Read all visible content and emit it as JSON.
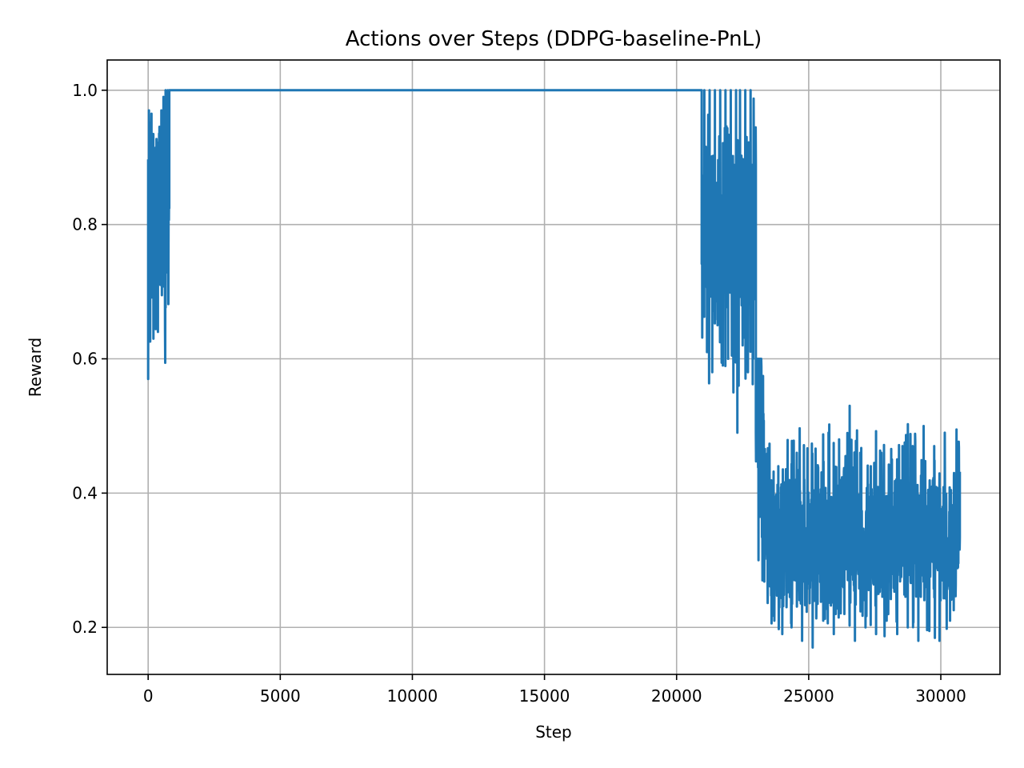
{
  "chart_data": {
    "type": "line",
    "title": "Actions over Steps (DDPG-baseline-PnL)",
    "xlabel": "Step",
    "ylabel": "Reward",
    "xlim": [
      -1550,
      32240
    ],
    "ylim": [
      0.13,
      1.045
    ],
    "xticks": [
      0,
      5000,
      10000,
      15000,
      20000,
      25000,
      30000
    ],
    "xtick_labels": [
      "0",
      "5000",
      "10000",
      "15000",
      "20000",
      "25000",
      "30000"
    ],
    "yticks": [
      0.2,
      0.4,
      0.6,
      0.8,
      1.0
    ],
    "ytick_labels": [
      "0.2",
      "0.4",
      "0.6",
      "0.8",
      "1.0"
    ],
    "grid": true,
    "legend": "none",
    "series_color": "#1f77b4",
    "series": [
      {
        "segments": [
          {
            "x_start": 0,
            "x_end": 800,
            "pattern": "noise",
            "min": 0.57,
            "max": 1.0,
            "mean": 0.83
          },
          {
            "x_start": 800,
            "x_end": 20950,
            "pattern": "constant",
            "value": 1.0
          },
          {
            "x_start": 20950,
            "x_end": 23000,
            "pattern": "noise",
            "min": 0.49,
            "max": 1.0,
            "mean": 0.82
          },
          {
            "x_start": 23000,
            "x_end": 23300,
            "pattern": "transition",
            "min": 0.3,
            "max": 0.6,
            "mean": 0.42
          },
          {
            "x_start": 23300,
            "x_end": 30720,
            "pattern": "noise",
            "min": 0.17,
            "max": 0.53,
            "mean": 0.33
          }
        ],
        "points": [
          [
            0,
            0.57
          ],
          [
            30,
            0.97
          ],
          [
            60,
            0.72
          ],
          [
            90,
            0.93
          ],
          [
            130,
            0.71
          ],
          [
            160,
            0.88
          ],
          [
            200,
            0.63
          ],
          [
            240,
            0.86
          ],
          [
            280,
            0.66
          ],
          [
            330,
            0.89
          ],
          [
            370,
            0.64
          ],
          [
            410,
            0.81
          ],
          [
            460,
            0.71
          ],
          [
            500,
            0.97
          ],
          [
            540,
            0.75
          ],
          [
            580,
            0.99
          ],
          [
            620,
            0.86
          ],
          [
            660,
            1.0
          ],
          [
            700,
            0.93
          ],
          [
            740,
            1.0
          ],
          [
            800,
            1.0
          ],
          [
            20950,
            1.0
          ],
          [
            21000,
            0.8
          ],
          [
            21050,
            1.0
          ],
          [
            21150,
            0.61
          ],
          [
            21250,
            1.0
          ],
          [
            21350,
            0.58
          ],
          [
            21450,
            1.0
          ],
          [
            21550,
            0.65
          ],
          [
            21650,
            1.0
          ],
          [
            21750,
            0.59
          ],
          [
            21850,
            1.0
          ],
          [
            21950,
            0.6
          ],
          [
            22050,
            1.0
          ],
          [
            22150,
            0.55
          ],
          [
            22250,
            1.0
          ],
          [
            22300,
            0.49
          ],
          [
            22400,
            1.0
          ],
          [
            22500,
            0.62
          ],
          [
            22600,
            1.0
          ],
          [
            22700,
            0.58
          ],
          [
            22800,
            1.0
          ],
          [
            22900,
            0.6
          ],
          [
            23000,
            0.49
          ],
          [
            23050,
            0.54
          ],
          [
            23100,
            0.3
          ],
          [
            23150,
            0.52
          ],
          [
            23250,
            0.27
          ],
          [
            23350,
            0.45
          ],
          [
            23450,
            0.25
          ],
          [
            23550,
            0.41
          ],
          [
            23700,
            0.21
          ],
          [
            23850,
            0.44
          ],
          [
            24000,
            0.19
          ],
          [
            24150,
            0.43
          ],
          [
            24350,
            0.2
          ],
          [
            24550,
            0.46
          ],
          [
            24750,
            0.18
          ],
          [
            24950,
            0.42
          ],
          [
            25150,
            0.17
          ],
          [
            25350,
            0.44
          ],
          [
            25550,
            0.21
          ],
          [
            25750,
            0.49
          ],
          [
            25950,
            0.19
          ],
          [
            26150,
            0.48
          ],
          [
            26350,
            0.22
          ],
          [
            26550,
            0.53
          ],
          [
            26750,
            0.18
          ],
          [
            26950,
            0.46
          ],
          [
            27150,
            0.2
          ],
          [
            27350,
            0.44
          ],
          [
            27550,
            0.19
          ],
          [
            27750,
            0.46
          ],
          [
            27950,
            0.21
          ],
          [
            28150,
            0.45
          ],
          [
            28350,
            0.19
          ],
          [
            28550,
            0.47
          ],
          [
            28750,
            0.2
          ],
          [
            28950,
            0.46
          ],
          [
            29150,
            0.18
          ],
          [
            29350,
            0.5
          ],
          [
            29550,
            0.22
          ],
          [
            29750,
            0.47
          ],
          [
            29950,
            0.18
          ],
          [
            30150,
            0.49
          ],
          [
            30350,
            0.21
          ],
          [
            30500,
            0.43
          ],
          [
            30600,
            0.3
          ],
          [
            30720,
            0.43
          ]
        ]
      }
    ]
  }
}
